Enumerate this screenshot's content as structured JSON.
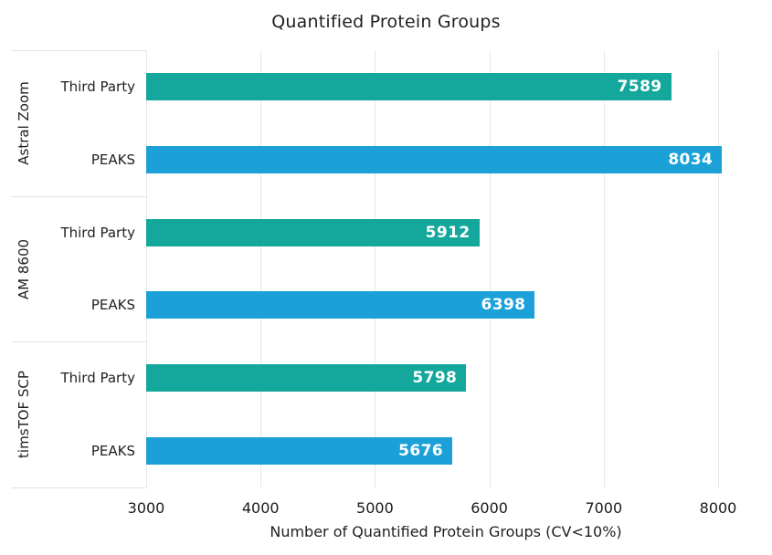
{
  "chart_data": {
    "type": "bar",
    "orientation": "horizontal",
    "title": "Quantified Protein Groups",
    "xlabel": "Number of Quantified Protein Groups (CV<10%)",
    "xlim": [
      3000,
      8000
    ],
    "xticks": [
      "3000",
      "4000",
      "5000",
      "6000",
      "7000",
      "8000"
    ],
    "grid": "vertical-only",
    "legend": "none",
    "value_label_style": "inside-end white bold",
    "categories": [
      "Astral Zoom",
      "AM 8600",
      "timsTOF SCP"
    ],
    "bar_row_labels": [
      "Third Party",
      "PEAKS"
    ],
    "series": [
      {
        "name": "Third Party",
        "color": "#14a79b",
        "values": [
          7589,
          5912,
          5798
        ]
      },
      {
        "name": "PEAKS",
        "color": "#1ba1d7",
        "values": [
          8034,
          6398,
          5676
        ]
      }
    ]
  },
  "colors": {
    "background": "#ffffff",
    "gridline": "#e7e7e7",
    "group_separator": "#e2e2e2",
    "text": "#1f1f1f",
    "bar_value_text": "#ffffff"
  }
}
